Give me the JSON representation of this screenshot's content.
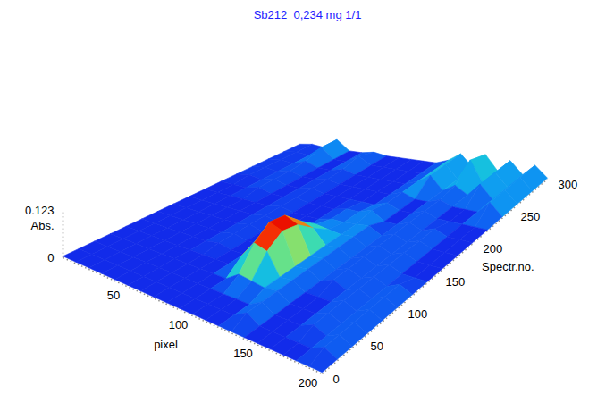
{
  "chart_data": {
    "type": "surface3d",
    "title": "Sb212  0,234 mg 1/1",
    "x_label": "pixel",
    "y_label": "Spectr.no.",
    "z_label": "Abs.",
    "x": [
      0,
      10,
      20,
      30,
      40,
      50,
      60,
      70,
      80,
      90,
      100,
      110,
      120,
      130,
      140,
      150,
      160,
      170,
      180,
      190,
      200
    ],
    "y": [
      0,
      20,
      40,
      60,
      80,
      100,
      120,
      140,
      160,
      180,
      200,
      220,
      240,
      260,
      280,
      300
    ],
    "z": [
      [
        0.004,
        0.004,
        0.004,
        0.004,
        0.004,
        0.004,
        0.004,
        0.004,
        0.004,
        0.004,
        0.004,
        0.004,
        0.004,
        0.004,
        0.004,
        0.004,
        0.004,
        0.004,
        0.004,
        0.004,
        0.004
      ],
      [
        0.004,
        0.004,
        0.004,
        0.004,
        0.004,
        0.004,
        0.004,
        0.004,
        0.004,
        0.004,
        0.004,
        0.004,
        0.004,
        0.025,
        0.004,
        0.004,
        0.004,
        0.004,
        0.004,
        0.022,
        0.004
      ],
      [
        0.004,
        0.004,
        0.004,
        0.004,
        0.004,
        0.004,
        0.004,
        0.004,
        0.004,
        0.004,
        0.004,
        0.004,
        0.004,
        0.025,
        0.004,
        0.004,
        0.004,
        0.02,
        0.004,
        0.022,
        0.004
      ],
      [
        0.004,
        0.004,
        0.004,
        0.004,
        0.004,
        0.004,
        0.004,
        0.004,
        0.004,
        0.004,
        0.03,
        0.025,
        0.02,
        0.025,
        0.004,
        0.004,
        0.004,
        0.02,
        0.004,
        0.022,
        0.004
      ],
      [
        0.004,
        0.004,
        0.004,
        0.004,
        0.004,
        0.004,
        0.004,
        0.004,
        0.004,
        0.04,
        0.09,
        0.08,
        0.02,
        0.025,
        0.004,
        0.004,
        0.004,
        0.02,
        0.004,
        0.022,
        0.004
      ],
      [
        0.004,
        0.004,
        0.004,
        0.004,
        0.004,
        0.004,
        0.012,
        0.004,
        0.004,
        0.06,
        0.123,
        0.11,
        0.02,
        0.025,
        0.004,
        0.02,
        0.004,
        0.02,
        0.004,
        0.022,
        0.004
      ],
      [
        0.004,
        0.004,
        0.004,
        0.004,
        0.004,
        0.004,
        0.012,
        0.004,
        0.004,
        0.05,
        0.115,
        0.1,
        0.02,
        0.025,
        0.004,
        0.02,
        0.004,
        0.02,
        0.004,
        0.022,
        0.004
      ],
      [
        0.004,
        0.004,
        0.004,
        0.004,
        0.004,
        0.004,
        0.012,
        0.004,
        0.004,
        0.03,
        0.07,
        0.06,
        0.02,
        0.025,
        0.004,
        0.02,
        0.004,
        0.02,
        0.004,
        0.004,
        0.004
      ],
      [
        0.004,
        0.004,
        0.004,
        0.004,
        0.004,
        0.004,
        0.012,
        0.004,
        0.004,
        0.004,
        0.03,
        0.025,
        0.02,
        0.025,
        0.004,
        0.02,
        0.004,
        0.02,
        0.004,
        0.004,
        0.004
      ],
      [
        0.004,
        0.004,
        0.004,
        0.004,
        0.004,
        0.004,
        0.012,
        0.004,
        0.004,
        0.004,
        0.015,
        0.015,
        0.02,
        0.025,
        0.004,
        0.02,
        0.004,
        0.02,
        0.004,
        0.004,
        0.004
      ],
      [
        0.004,
        0.004,
        0.004,
        0.015,
        0.004,
        0.004,
        0.012,
        0.004,
        0.004,
        0.004,
        0.015,
        0.015,
        0.03,
        0.004,
        0.004,
        0.02,
        0.004,
        0.02,
        0.004,
        0.004,
        0.004
      ],
      [
        0.004,
        0.01,
        0.004,
        0.015,
        0.004,
        0.004,
        0.012,
        0.004,
        0.004,
        0.004,
        0.004,
        0.004,
        0.02,
        0.004,
        0.004,
        0.02,
        0.004,
        0.004,
        0.004,
        0.004,
        0.004
      ],
      [
        0.004,
        0.01,
        0.004,
        0.015,
        0.004,
        0.004,
        0.012,
        0.004,
        0.004,
        0.004,
        0.004,
        0.004,
        0.02,
        0.004,
        0.004,
        0.02,
        0.004,
        0.004,
        0.004,
        0.045,
        0.004
      ],
      [
        0.004,
        0.01,
        0.004,
        0.02,
        0.004,
        0.004,
        0.015,
        0.004,
        0.004,
        0.004,
        0.004,
        0.004,
        0.02,
        0.05,
        0.004,
        0.03,
        0.004,
        0.05,
        0.004,
        0.045,
        0.004
      ],
      [
        0.004,
        0.01,
        0.004,
        0.04,
        0.004,
        0.004,
        0.03,
        0.004,
        0.004,
        0.004,
        0.004,
        0.004,
        0.02,
        0.05,
        0.004,
        0.08,
        0.004,
        0.05,
        0.004,
        0.045,
        0.004
      ],
      [
        0.004,
        0.01,
        0.004,
        0.04,
        0.004,
        0.004,
        0.012,
        0.004,
        0.004,
        0.004,
        0.004,
        0.004,
        0.02,
        0.05,
        0.004,
        0.06,
        0.004,
        0.05,
        0.004,
        0.045,
        0.004
      ]
    ],
    "xlim": [
      0,
      200
    ],
    "xticks": [
      50,
      100,
      150,
      200
    ],
    "ylim": [
      0,
      300
    ],
    "yticks": [
      0,
      50,
      100,
      150,
      200,
      250,
      300
    ],
    "zlim": [
      0,
      0.123
    ],
    "zticks": [
      0,
      0.123
    ]
  }
}
